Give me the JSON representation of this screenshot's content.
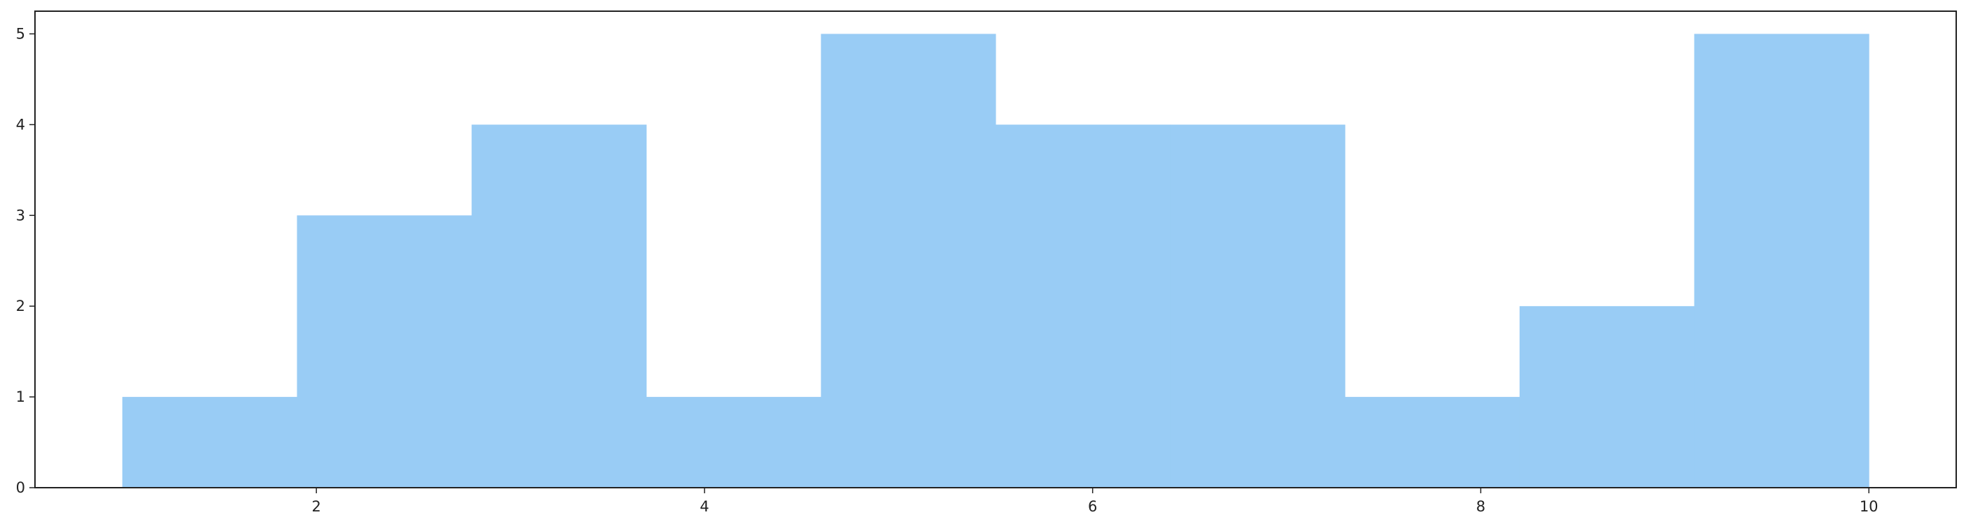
{
  "chart_data": {
    "type": "bar",
    "histogram": true,
    "title": "",
    "xlabel": "",
    "ylabel": "",
    "bin_edges": [
      1.0,
      1.9,
      2.8,
      3.7,
      4.6,
      5.5,
      6.4,
      7.3,
      8.2,
      9.1,
      10.0
    ],
    "values": [
      1,
      3,
      4,
      1,
      5,
      4,
      4,
      1,
      2,
      5
    ],
    "xlim": [
      0.55,
      10.45
    ],
    "ylim": [
      0,
      5.25
    ],
    "xticks": [
      2,
      4,
      6,
      8,
      10
    ],
    "xtick_labels": [
      "2",
      "4",
      "6",
      "8",
      "10"
    ],
    "yticks": [
      0,
      1,
      2,
      3,
      4,
      5
    ],
    "ytick_labels": [
      "0",
      "1",
      "2",
      "3",
      "4",
      "5"
    ],
    "bar_color": "#99ccf5",
    "axis_color": "#222222",
    "grid": false
  }
}
